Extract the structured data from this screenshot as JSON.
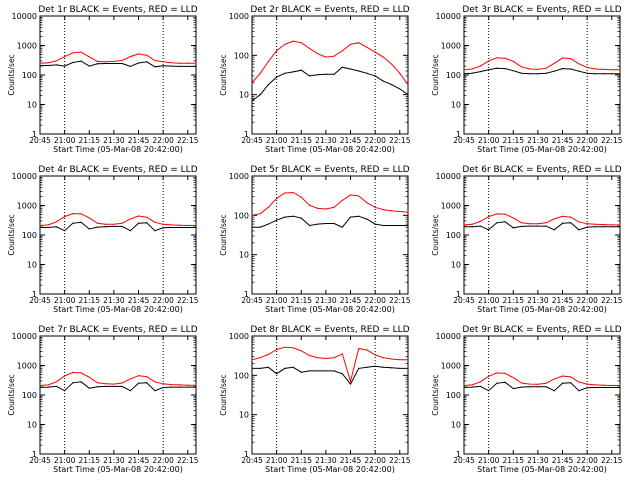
{
  "chart_data": [
    {
      "type": "line",
      "title": "Det 1r BLACK = Events, RED = LLD",
      "xlabel": "Start Time (05-Mar-08 20:42:00)",
      "ylabel": "Counts/sec",
      "log_y": true,
      "ylim": [
        1,
        10000
      ],
      "xlim": [
        "20:45",
        "22:20"
      ],
      "x_ticks": [
        "20:45",
        "21:00",
        "21:15",
        "21:30",
        "21:45",
        "22:00",
        "22:15"
      ],
      "y_ticks": [
        "1",
        "10",
        "100",
        "1000",
        "10000"
      ],
      "x": [
        "20:45",
        "20:50",
        "20:55",
        "21:00",
        "21:05",
        "21:10",
        "21:15",
        "21:20",
        "21:25",
        "21:30",
        "21:35",
        "21:40",
        "21:45",
        "21:50",
        "21:55",
        "22:00",
        "22:05",
        "22:10",
        "22:15",
        "22:20"
      ],
      "series": [
        {
          "name": "BLACK = Events",
          "color": "#000000",
          "values": [
            210,
            210,
            220,
            200,
            265,
            295,
            200,
            240,
            245,
            245,
            245,
            195,
            255,
            280,
            190,
            205,
            200,
            195,
            195,
            195
          ]
        },
        {
          "name": "RED = LLD",
          "color": "#ff0000",
          "values": [
            250,
            260,
            300,
            420,
            560,
            600,
            410,
            290,
            280,
            290,
            310,
            420,
            520,
            470,
            310,
            280,
            260,
            250,
            250,
            250
          ]
        }
      ]
    },
    {
      "type": "line",
      "title": "Det 2r BLACK = Events, RED = LLD",
      "xlabel": "Start Time (05-Mar-08 20:42:00)",
      "ylabel": "Counts/sec",
      "log_y": true,
      "ylim": [
        1,
        1000
      ],
      "xlim": [
        "20:45",
        "22:20"
      ],
      "x_ticks": [
        "20:45",
        "21:00",
        "21:15",
        "21:30",
        "21:45",
        "22:00",
        "22:15"
      ],
      "y_ticks": [
        "1",
        "10",
        "100",
        "1000"
      ],
      "x": [
        "20:45",
        "20:50",
        "20:55",
        "21:00",
        "21:05",
        "21:10",
        "21:15",
        "21:20",
        "21:25",
        "21:30",
        "21:35",
        "21:40",
        "21:45",
        "21:50",
        "21:55",
        "22:00",
        "22:05",
        "22:10",
        "22:15",
        "22:20"
      ],
      "series": [
        {
          "name": "BLACK = Events",
          "color": "#000000",
          "values": [
            7,
            10,
            18,
            28,
            35,
            38,
            42,
            30,
            32,
            33,
            33,
            50,
            45,
            40,
            35,
            30,
            22,
            18,
            14,
            10
          ]
        },
        {
          "name": "RED = LLD",
          "color": "#ff0000",
          "values": [
            20,
            35,
            70,
            130,
            190,
            230,
            210,
            150,
            110,
            90,
            95,
            130,
            190,
            210,
            160,
            120,
            90,
            60,
            35,
            18
          ]
        }
      ]
    },
    {
      "type": "line",
      "title": "Det 3r BLACK = Events, RED = LLD",
      "xlabel": "",
      "ylabel": "Counts/sec",
      "log_y": true,
      "ylim": [
        1,
        10000
      ],
      "xlim": [
        "20:45",
        "22:20"
      ],
      "x_ticks": [
        "20:45",
        "21:00",
        "21:15",
        "21:30",
        "21:45",
        "22:00",
        "22:15"
      ],
      "y_ticks": [
        "1",
        "10",
        "100",
        "1000",
        "10000"
      ],
      "x": [
        "20:45",
        "20:50",
        "20:55",
        "21:00",
        "21:05",
        "21:10",
        "21:15",
        "21:20",
        "21:25",
        "21:30",
        "21:35",
        "21:40",
        "21:45",
        "21:50",
        "21:55",
        "22:00",
        "22:05",
        "22:10",
        "22:15",
        "22:20"
      ],
      "series": [
        {
          "name": "BLACK = Events",
          "color": "#000000",
          "values": [
            110,
            115,
            130,
            150,
            170,
            165,
            140,
            115,
            110,
            110,
            115,
            135,
            165,
            160,
            135,
            115,
            110,
            110,
            110,
            110
          ]
        },
        {
          "name": "RED = LLD",
          "color": "#ff0000",
          "values": [
            150,
            160,
            200,
            300,
            380,
            370,
            290,
            190,
            160,
            155,
            170,
            250,
            380,
            360,
            240,
            180,
            160,
            155,
            150,
            150
          ]
        }
      ]
    },
    {
      "type": "line",
      "title": "Det 4r BLACK = Events, RED = LLD",
      "xlabel": "",
      "ylabel": "Counts/sec",
      "log_y": true,
      "ylim": [
        1,
        10000
      ],
      "xlim": [
        "20:45",
        "22:20"
      ],
      "x_ticks": [
        "20:45",
        "21:00",
        "21:15",
        "21:30",
        "21:45",
        "22:00",
        "22:15"
      ],
      "y_ticks": [
        "1",
        "10",
        "100",
        "1000",
        "10000"
      ],
      "x": [
        "20:45",
        "20:50",
        "20:55",
        "21:00",
        "21:05",
        "21:10",
        "21:15",
        "21:20",
        "21:25",
        "21:30",
        "21:35",
        "21:40",
        "21:45",
        "21:50",
        "21:55",
        "22:00",
        "22:05",
        "22:10",
        "22:15",
        "22:20"
      ],
      "series": [
        {
          "name": "BLACK = Events",
          "color": "#000000",
          "values": [
            180,
            180,
            190,
            140,
            250,
            270,
            160,
            185,
            190,
            195,
            195,
            140,
            250,
            260,
            140,
            175,
            180,
            180,
            180,
            180
          ]
        },
        {
          "name": "RED = LLD",
          "color": "#ff0000",
          "values": [
            210,
            220,
            280,
            420,
            530,
            520,
            380,
            250,
            230,
            230,
            250,
            350,
            440,
            400,
            270,
            230,
            220,
            215,
            210,
            210
          ]
        }
      ]
    },
    {
      "type": "line",
      "title": "Det 5r BLACK = Events, RED = LLD",
      "xlabel": "",
      "ylabel": "Counts/sec",
      "log_y": true,
      "ylim": [
        1,
        1000
      ],
      "xlim": [
        "20:45",
        "22:20"
      ],
      "x_ticks": [
        "20:45",
        "21:00",
        "21:15",
        "21:30",
        "21:45",
        "22:00",
        "22:15"
      ],
      "y_ticks": [
        "1",
        "10",
        "100",
        "1000"
      ],
      "x": [
        "20:45",
        "20:50",
        "20:55",
        "21:00",
        "21:05",
        "21:10",
        "21:15",
        "21:20",
        "21:25",
        "21:30",
        "21:35",
        "21:40",
        "21:45",
        "21:50",
        "21:55",
        "22:00",
        "22:05",
        "22:10",
        "22:15",
        "22:20"
      ],
      "series": [
        {
          "name": "BLACK = Events",
          "color": "#000000",
          "values": [
            50,
            50,
            60,
            75,
            90,
            95,
            85,
            55,
            60,
            62,
            62,
            50,
            90,
            95,
            80,
            60,
            55,
            55,
            55,
            55
          ]
        },
        {
          "name": "RED = LLD",
          "color": "#ff0000",
          "values": [
            100,
            110,
            160,
            270,
            370,
            380,
            290,
            180,
            150,
            145,
            160,
            240,
            330,
            310,
            210,
            160,
            140,
            130,
            125,
            120
          ]
        }
      ]
    },
    {
      "type": "line",
      "title": "Det 6r BLACK = Events, RED = LLD",
      "xlabel": "",
      "ylabel": "Counts/sec",
      "log_y": true,
      "ylim": [
        1,
        10000
      ],
      "xlim": [
        "20:45",
        "22:20"
      ],
      "x_ticks": [
        "20:45",
        "21:00",
        "21:15",
        "21:30",
        "21:45",
        "22:00",
        "22:15"
      ],
      "y_ticks": [
        "1",
        "10",
        "100",
        "1000",
        "10000"
      ],
      "x": [
        "20:45",
        "20:50",
        "20:55",
        "21:00",
        "21:05",
        "21:10",
        "21:15",
        "21:20",
        "21:25",
        "21:30",
        "21:35",
        "21:40",
        "21:45",
        "21:50",
        "21:55",
        "22:00",
        "22:05",
        "22:10",
        "22:15",
        "22:20"
      ],
      "series": [
        {
          "name": "BLACK = Events",
          "color": "#000000",
          "values": [
            190,
            190,
            200,
            150,
            260,
            280,
            175,
            195,
            200,
            200,
            200,
            150,
            250,
            260,
            150,
            185,
            190,
            190,
            190,
            190
          ]
        },
        {
          "name": "RED = LLD",
          "color": "#ff0000",
          "values": [
            220,
            230,
            290,
            420,
            520,
            510,
            380,
            260,
            240,
            240,
            260,
            350,
            430,
            400,
            280,
            240,
            230,
            225,
            220,
            220
          ]
        }
      ]
    },
    {
      "type": "line",
      "title": "Det 7r BLACK = Events, RED = LLD",
      "xlabel": "",
      "ylabel": "Counts/sec",
      "log_y": true,
      "ylim": [
        1,
        10000
      ],
      "xlim": [
        "20:45",
        "22:20"
      ],
      "x_ticks": [
        "20:45",
        "21:00",
        "21:15",
        "21:30",
        "21:45",
        "22:00",
        "22:15"
      ],
      "y_ticks": [
        "1",
        "10",
        "100",
        "1000",
        "10000"
      ],
      "x": [
        "20:45",
        "20:50",
        "20:55",
        "21:00",
        "21:05",
        "21:10",
        "21:15",
        "21:20",
        "21:25",
        "21:30",
        "21:35",
        "21:40",
        "21:45",
        "21:50",
        "21:55",
        "22:00",
        "22:05",
        "22:10",
        "22:15",
        "22:20"
      ],
      "series": [
        {
          "name": "BLACK = Events",
          "color": "#000000",
          "values": [
            180,
            185,
            195,
            140,
            260,
            280,
            170,
            190,
            195,
            195,
            195,
            140,
            250,
            260,
            140,
            180,
            185,
            185,
            185,
            185
          ]
        },
        {
          "name": "RED = LLD",
          "color": "#ff0000",
          "values": [
            210,
            220,
            280,
            440,
            580,
            560,
            400,
            260,
            240,
            235,
            255,
            350,
            450,
            420,
            280,
            240,
            225,
            220,
            215,
            215
          ]
        }
      ]
    },
    {
      "type": "line",
      "title": "Det 8r BLACK = Events, RED = LLD",
      "xlabel": "",
      "ylabel": "Counts/sec",
      "log_y": true,
      "ylim": [
        1,
        1000
      ],
      "xlim": [
        "20:45",
        "22:20"
      ],
      "x_ticks": [
        "20:45",
        "21:00",
        "21:15",
        "21:30",
        "21:45",
        "22:00",
        "22:15"
      ],
      "y_ticks": [
        "1",
        "10",
        "100",
        "1000"
      ],
      "x": [
        "20:45",
        "20:50",
        "20:55",
        "21:00",
        "21:05",
        "21:10",
        "21:15",
        "21:20",
        "21:25",
        "21:30",
        "21:35",
        "21:40",
        "21:45",
        "21:50",
        "21:55",
        "22:00",
        "22:05",
        "22:10",
        "22:15",
        "22:20"
      ],
      "series": [
        {
          "name": "BLACK = Events",
          "color": "#000000",
          "values": [
            150,
            150,
            160,
            110,
            150,
            160,
            120,
            130,
            130,
            130,
            130,
            110,
            60,
            150,
            160,
            170,
            160,
            155,
            150,
            150
          ]
        },
        {
          "name": "RED = LLD",
          "color": "#ff0000",
          "values": [
            250,
            280,
            340,
            450,
            520,
            500,
            420,
            320,
            280,
            270,
            280,
            350,
            70,
            480,
            440,
            330,
            280,
            260,
            250,
            250
          ]
        }
      ]
    },
    {
      "type": "line",
      "title": "Det 9r BLACK = Events, RED = LLD",
      "xlabel": "",
      "ylabel": "Counts/sec",
      "log_y": true,
      "ylim": [
        1,
        10000
      ],
      "xlim": [
        "20:45",
        "22:20"
      ],
      "x_ticks": [
        "20:45",
        "21:00",
        "21:15",
        "21:30",
        "21:45",
        "22:00",
        "22:15"
      ],
      "y_ticks": [
        "1",
        "10",
        "100",
        "1000",
        "10000"
      ],
      "x": [
        "20:45",
        "20:50",
        "20:55",
        "21:00",
        "21:05",
        "21:10",
        "21:15",
        "21:20",
        "21:25",
        "21:30",
        "21:35",
        "21:40",
        "21:45",
        "21:50",
        "21:55",
        "22:00",
        "22:05",
        "22:10",
        "22:15",
        "22:20"
      ],
      "series": [
        {
          "name": "BLACK = Events",
          "color": "#000000",
          "values": [
            180,
            185,
            195,
            140,
            250,
            270,
            165,
            185,
            190,
            190,
            190,
            140,
            250,
            260,
            140,
            175,
            180,
            180,
            180,
            180
          ]
        },
        {
          "name": "RED = LLD",
          "color": "#ff0000",
          "values": [
            210,
            220,
            280,
            430,
            560,
            540,
            390,
            255,
            235,
            230,
            250,
            350,
            440,
            410,
            275,
            235,
            220,
            215,
            210,
            210
          ]
        }
      ]
    }
  ],
  "xlabel_text": "Start Time (05-Mar-08 20:42:00)"
}
